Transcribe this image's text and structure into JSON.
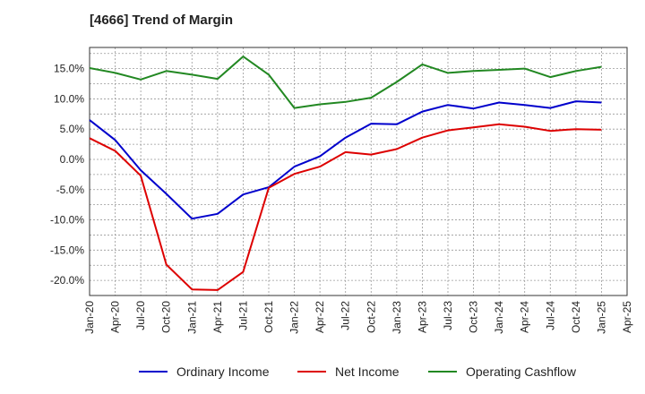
{
  "chart_data": {
    "type": "line",
    "title": "[4666]  Trend of Margin",
    "xlabel": "",
    "ylabel": "",
    "ylim": [
      -22.5,
      18.5
    ],
    "grid": true,
    "legend_position": "bottom",
    "y_ticks": [
      15.0,
      10.0,
      5.0,
      0.0,
      -5.0,
      -10.0,
      -15.0,
      -20.0
    ],
    "y_tick_labels": [
      "15.0%",
      "10.0%",
      "5.0%",
      "0.0%",
      "-5.0%",
      "-10.0%",
      "-15.0%",
      "-20.0%"
    ],
    "x_tick_labels": [
      "Jan-20",
      "Apr-20",
      "Jul-20",
      "Oct-20",
      "Jan-21",
      "Apr-21",
      "Jul-21",
      "Oct-21",
      "Jan-22",
      "Apr-22",
      "Jul-22",
      "Oct-22",
      "Jan-23",
      "Apr-23",
      "Jul-23",
      "Oct-23",
      "Jan-24",
      "Apr-24",
      "Jul-24",
      "Oct-24",
      "Jan-25",
      "Apr-25"
    ],
    "categories": [
      "Jan-20",
      "Apr-20",
      "Jul-20",
      "Oct-20",
      "Jan-21",
      "Apr-21",
      "Jul-21",
      "Oct-21",
      "Jan-22",
      "Apr-22",
      "Jul-22",
      "Oct-22",
      "Jan-23",
      "Apr-23",
      "Jul-23",
      "Oct-23",
      "Jan-24",
      "Apr-24",
      "Jul-24",
      "Oct-24",
      "Jan-25"
    ],
    "series": [
      {
        "name": "Ordinary Income",
        "color": "#0000cc",
        "values": [
          6.5,
          3.2,
          -1.8,
          -5.7,
          -9.8,
          -9.0,
          -5.8,
          -4.6,
          -1.2,
          0.5,
          3.6,
          5.9,
          5.8,
          7.9,
          9.0,
          8.4,
          9.4,
          9.0,
          8.5,
          9.6,
          9.4
        ]
      },
      {
        "name": "Net Income",
        "color": "#dd0000",
        "values": [
          3.5,
          1.4,
          -2.7,
          -17.4,
          -21.5,
          -21.6,
          -18.6,
          -4.7,
          -2.4,
          -1.2,
          1.2,
          0.8,
          1.7,
          3.6,
          4.8,
          5.3,
          5.8,
          5.4,
          4.7,
          5.0,
          4.9
        ]
      },
      {
        "name": "Operating Cashflow",
        "color": "#228822",
        "values": [
          15.1,
          14.3,
          13.2,
          14.6,
          14.0,
          13.3,
          17.0,
          14.0,
          8.5,
          9.1,
          9.5,
          10.2,
          12.8,
          15.7,
          14.3,
          14.6,
          14.8,
          15.0,
          13.6,
          14.6,
          15.3
        ]
      }
    ]
  }
}
